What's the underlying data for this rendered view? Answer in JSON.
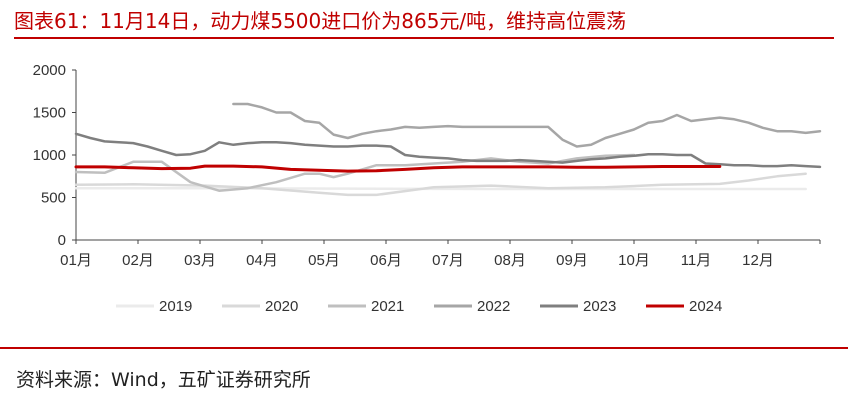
{
  "header": {
    "title": "图表61：11月14日，动力煤5500进口价为865元/吨，维持高位震荡"
  },
  "footer": {
    "source": "资料来源：Wind，五矿证券研究所"
  },
  "chart_data": {
    "type": "line",
    "title": "图表61：11月14日，动力煤5500进口价为865元/吨，维持高位震荡",
    "xlabel": "",
    "ylabel": "",
    "x_ticks": [
      "01月",
      "02月",
      "03月",
      "04月",
      "05月",
      "06月",
      "07月",
      "08月",
      "09月",
      "10月",
      "11月",
      "12月"
    ],
    "x_unit": "week_of_year",
    "y_ticks": [
      0,
      500,
      1000,
      1500,
      2000
    ],
    "ylim": [
      0,
      2000
    ],
    "grid": false,
    "legend_position": "bottom",
    "series": [
      {
        "name": "2019",
        "color": "#ebebeb",
        "x": [
          1,
          10,
          20,
          30,
          40,
          52
        ],
        "values": [
          610,
          610,
          605,
          600,
          600,
          600
        ]
      },
      {
        "name": "2020",
        "color": "#d9d9d9",
        "x": [
          1,
          5,
          10,
          14,
          18,
          20,
          22,
          26,
          30,
          34,
          38,
          42,
          46,
          48,
          50,
          52
        ],
        "values": [
          650,
          655,
          640,
          610,
          555,
          530,
          530,
          620,
          640,
          610,
          620,
          650,
          660,
          700,
          750,
          780
        ]
      },
      {
        "name": "2021",
        "color": "#bfbfbf",
        "x": [
          1,
          3,
          5,
          7,
          9,
          11,
          13,
          15,
          17,
          18,
          19,
          20,
          22,
          24,
          28,
          30,
          32,
          34,
          36,
          38,
          40
        ],
        "values": [
          800,
          790,
          920,
          920,
          680,
          580,
          610,
          680,
          780,
          780,
          740,
          780,
          880,
          880,
          920,
          960,
          920,
          900,
          960,
          990,
          1000
        ]
      },
      {
        "name": "2022",
        "color": "#a6a6a6",
        "x": [
          12,
          13,
          14,
          15,
          16,
          17,
          18,
          19,
          20,
          21,
          22,
          23,
          24,
          25,
          26,
          27,
          28,
          29,
          30,
          31,
          32,
          33,
          34,
          35,
          36,
          37,
          38,
          39,
          40,
          41,
          42,
          43,
          44,
          45,
          46,
          47,
          48,
          49,
          50,
          51,
          52,
          53
        ],
        "values": [
          1600,
          1600,
          1560,
          1500,
          1500,
          1400,
          1380,
          1240,
          1200,
          1250,
          1280,
          1300,
          1330,
          1320,
          1330,
          1340,
          1330,
          1330,
          1330,
          1330,
          1330,
          1330,
          1330,
          1180,
          1100,
          1120,
          1200,
          1250,
          1300,
          1380,
          1400,
          1470,
          1400,
          1420,
          1440,
          1420,
          1380,
          1320,
          1280,
          1280,
          1260,
          1280
        ]
      },
      {
        "name": "2023",
        "color": "#7f7f7f",
        "x": [
          1,
          2,
          3,
          4,
          5,
          6,
          7,
          8,
          9,
          10,
          11,
          12,
          13,
          14,
          15,
          16,
          17,
          18,
          19,
          20,
          21,
          22,
          23,
          24,
          25,
          26,
          27,
          28,
          29,
          30,
          31,
          32,
          33,
          34,
          35,
          36,
          37,
          38,
          39,
          40,
          41,
          42,
          43,
          44,
          45,
          46,
          47,
          48,
          49,
          50,
          51,
          52,
          53
        ],
        "values": [
          1250,
          1200,
          1160,
          1150,
          1140,
          1100,
          1050,
          1000,
          1010,
          1050,
          1150,
          1120,
          1140,
          1150,
          1150,
          1140,
          1120,
          1110,
          1100,
          1100,
          1110,
          1110,
          1100,
          1000,
          980,
          970,
          960,
          940,
          930,
          930,
          930,
          940,
          930,
          920,
          910,
          930,
          950,
          960,
          980,
          990,
          1010,
          1010,
          1000,
          1000,
          900,
          890,
          880,
          880,
          870,
          870,
          880,
          870,
          860
        ]
      },
      {
        "name": "2024",
        "color": "#c00000",
        "x": [
          1,
          3,
          5,
          7,
          9,
          10,
          12,
          14,
          16,
          18,
          20,
          22,
          24,
          26,
          28,
          30,
          32,
          34,
          36,
          38,
          40,
          42,
          44,
          46
        ],
        "values": [
          860,
          860,
          850,
          840,
          845,
          870,
          870,
          860,
          830,
          820,
          810,
          815,
          830,
          850,
          860,
          860,
          860,
          860,
          855,
          855,
          860,
          865,
          865,
          865
        ]
      }
    ]
  }
}
